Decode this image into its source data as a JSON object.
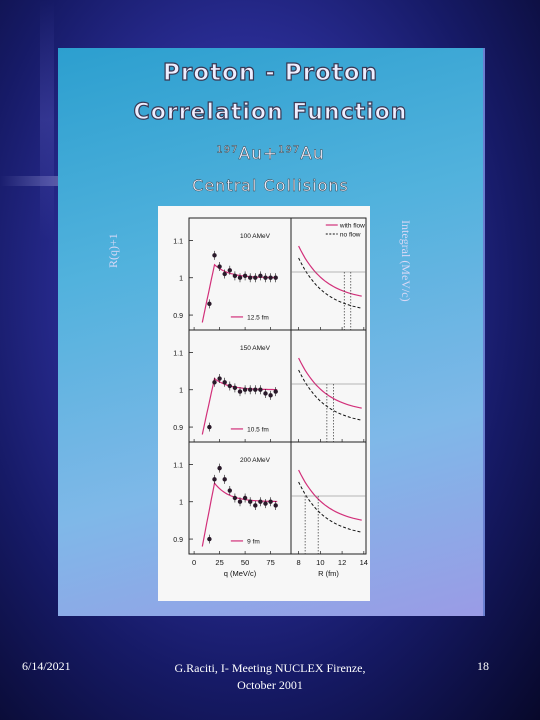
{
  "slide": {
    "title_line1": "Proton - Proton",
    "title_line2": "Correlation Function",
    "reaction": {
      "sup1": "197",
      "el1": "Au+",
      "sup2": "197",
      "el2": "Au"
    },
    "subtitle": "Central Collisions",
    "left_axis_label": "R(q)+1",
    "right_axis_label": "Integral (MeV/c)"
  },
  "footer": {
    "date": "6/14/2021",
    "center": "G.Raciti, I- Meeting NUCLEX Firenze, October 2001",
    "page": "18"
  },
  "chart_data": {
    "type": "scatter",
    "legend": {
      "with_flow": "with flow",
      "no_flow": "no flow"
    },
    "left_xlabel": "q (MeV/c)",
    "right_xlabel": "R (fm)",
    "left_xticks": [
      "0",
      "25",
      "50",
      "75"
    ],
    "right_xticks": [
      "8",
      "10",
      "12",
      "14"
    ],
    "yticks": [
      "1.1",
      "1",
      "0.9"
    ],
    "panels": [
      {
        "energy": "100 AMeV",
        "radius": "12.5 fm",
        "points": [
          [
            15,
            0.93
          ],
          [
            20,
            1.06
          ],
          [
            25,
            1.03
          ],
          [
            30,
            1.01
          ],
          [
            35,
            1.02
          ],
          [
            40,
            1.005
          ],
          [
            45,
            1.0
          ],
          [
            50,
            1.005
          ],
          [
            55,
            1.0
          ],
          [
            60,
            1.0
          ],
          [
            65,
            1.005
          ],
          [
            70,
            1.0
          ],
          [
            75,
            1.0
          ],
          [
            80,
            1.0
          ]
        ]
      },
      {
        "energy": "150 AMeV",
        "radius": "10.5 fm",
        "points": [
          [
            15,
            0.9
          ],
          [
            20,
            1.02
          ],
          [
            25,
            1.03
          ],
          [
            30,
            1.02
          ],
          [
            35,
            1.01
          ],
          [
            40,
            1.005
          ],
          [
            45,
            0.995
          ],
          [
            50,
            1.0
          ],
          [
            55,
            1.0
          ],
          [
            60,
            1.0
          ],
          [
            65,
            1.0
          ],
          [
            70,
            0.99
          ],
          [
            75,
            0.985
          ],
          [
            80,
            0.995
          ]
        ]
      },
      {
        "energy": "200 AMeV",
        "radius": "9 fm",
        "points": [
          [
            15,
            0.9
          ],
          [
            20,
            1.06
          ],
          [
            25,
            1.09
          ],
          [
            30,
            1.06
          ],
          [
            35,
            1.03
          ],
          [
            40,
            1.01
          ],
          [
            45,
            1.0
          ],
          [
            50,
            1.01
          ],
          [
            55,
            1.0
          ],
          [
            60,
            0.99
          ],
          [
            65,
            1.0
          ],
          [
            70,
            0.995
          ],
          [
            75,
            1.0
          ],
          [
            80,
            0.99
          ]
        ]
      }
    ]
  }
}
